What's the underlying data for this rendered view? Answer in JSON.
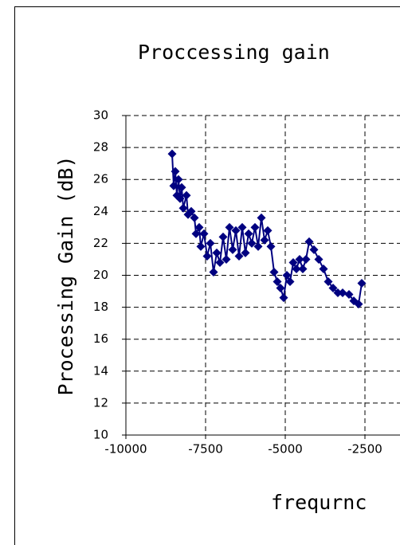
{
  "chart_data": {
    "type": "line",
    "title": "Proccessing gain",
    "x_label": "frequrnc",
    "y_label": "Processing Gain (dB)",
    "x": [
      -8550,
      -8500,
      -8450,
      -8400,
      -8350,
      -8300,
      -8250,
      -8200,
      -8100,
      -8050,
      -7950,
      -7850,
      -7800,
      -7700,
      -7650,
      -7550,
      -7450,
      -7350,
      -7250,
      -7150,
      -7050,
      -6950,
      -6850,
      -6750,
      -6650,
      -6550,
      -6450,
      -6350,
      -6250,
      -6150,
      -6050,
      -5950,
      -5850,
      -5750,
      -5650,
      -5550,
      -5450,
      -5350,
      -5250,
      -5150,
      -5050,
      -4950,
      -4850,
      -4750,
      -4650,
      -4550,
      -4450,
      -4350,
      -4250,
      -4100,
      -3950,
      -3800,
      -3650,
      -3500,
      -3350,
      -3200,
      -3000,
      -2850,
      -2700,
      -2600
    ],
    "series": [
      {
        "color": "#000080",
        "values": [
          27.6,
          25.6,
          26.5,
          25.0,
          26.0,
          24.8,
          25.5,
          24.2,
          25.0,
          23.8,
          24.0,
          23.6,
          22.6,
          23.0,
          21.8,
          22.6,
          21.2,
          22.0,
          20.2,
          21.4,
          20.8,
          22.4,
          21.0,
          23.0,
          21.6,
          22.8,
          21.2,
          23.0,
          21.4,
          22.6,
          22.0,
          23.0,
          21.8,
          23.6,
          22.2,
          22.8,
          21.8,
          20.2,
          19.6,
          19.2,
          18.6,
          20.0,
          19.6,
          20.8,
          20.4,
          21.0,
          20.4,
          21.0,
          22.1,
          21.6,
          21.0,
          20.4,
          19.6,
          19.2,
          18.9,
          18.9,
          18.8,
          18.4,
          18.2,
          19.5
        ]
      }
    ],
    "xlim": [
      -10000,
      -1500
    ],
    "xticks": [
      -10000,
      -7500,
      -5000,
      -2500
    ],
    "ylim": [
      10,
      30
    ],
    "yticks": [
      10,
      12,
      14,
      16,
      18,
      20,
      22,
      24,
      26,
      28,
      30
    ],
    "grid": true
  }
}
